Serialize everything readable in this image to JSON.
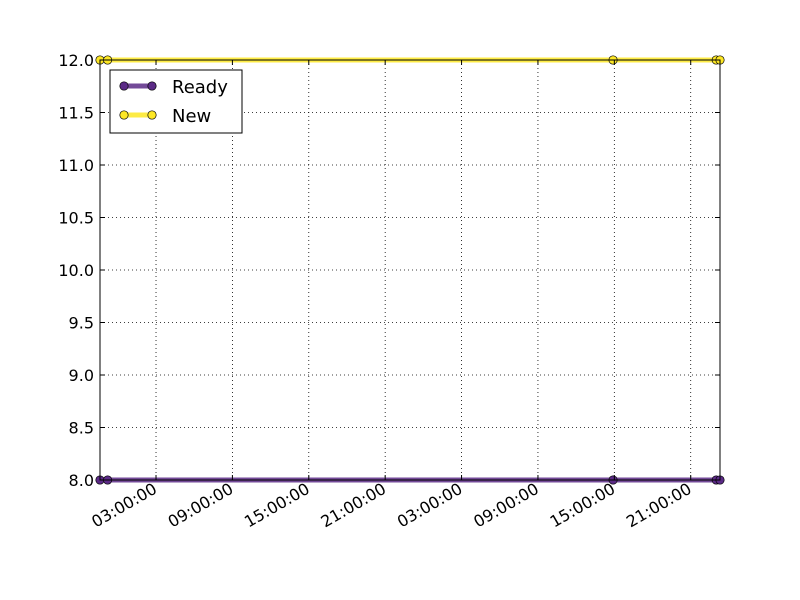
{
  "chart_data": {
    "type": "line",
    "title": "",
    "xlabel": "",
    "ylabel": "",
    "ylim": [
      8.0,
      12.0
    ],
    "grid": true,
    "legend_position": "top-left",
    "y_ticks": [
      "8.0",
      "8.5",
      "9.0",
      "9.5",
      "10.0",
      "10.5",
      "11.0",
      "11.5",
      "12.0"
    ],
    "x_ticks": [
      "03:00:00",
      "09:00:00",
      "15:00:00",
      "21:00:00",
      "03:00:00",
      "09:00:00",
      "15:00:00",
      "21:00:00"
    ],
    "x_tick_hours": [
      3,
      9,
      15,
      21,
      27,
      33,
      39,
      45
    ],
    "xlim_hours": [
      -1.4,
      47.3
    ],
    "series": [
      {
        "name": "Ready",
        "color": "#5b2a86",
        "x_hours": [
          -1.4,
          -0.8,
          38.9,
          47.0,
          47.3
        ],
        "values": [
          8,
          8,
          8,
          8,
          8
        ]
      },
      {
        "name": "New",
        "color": "#fde725",
        "x_hours": [
          -1.4,
          -0.8,
          38.9,
          47.0,
          47.3
        ],
        "values": [
          12,
          12,
          12,
          12,
          12
        ]
      }
    ]
  }
}
